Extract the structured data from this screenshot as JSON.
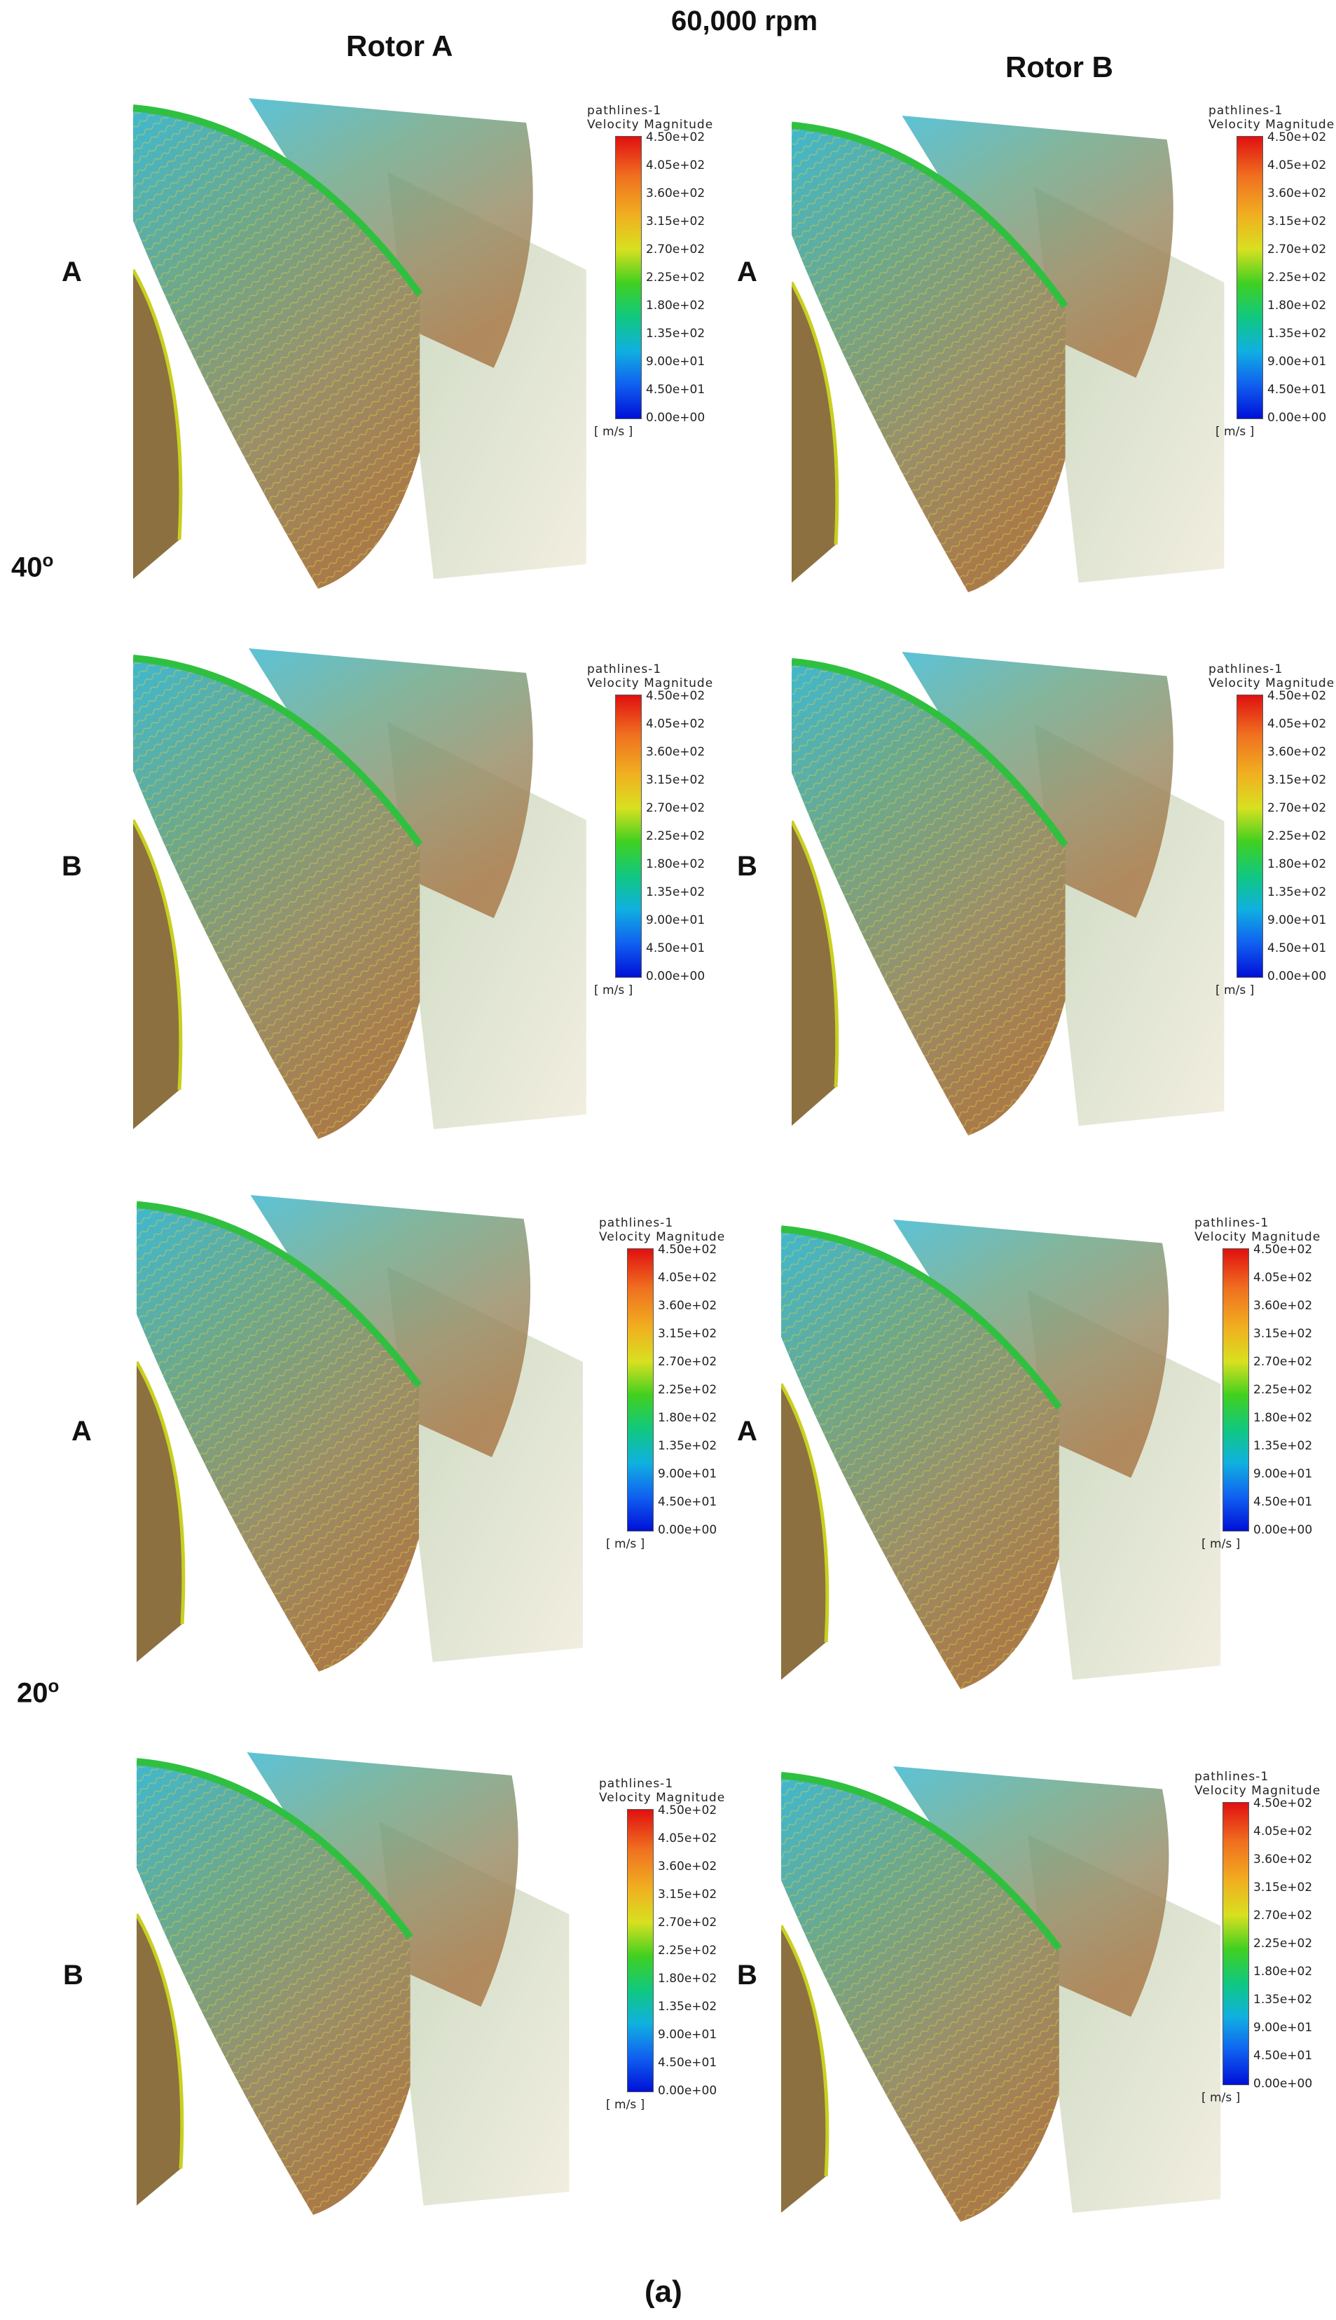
{
  "header": {
    "rpm": "60,000 rpm",
    "rotor_a": "Rotor A",
    "rotor_b": "Rotor B"
  },
  "angles": {
    "a40": "40",
    "a20": "20",
    "deg": "o"
  },
  "rows": {
    "r1": "A",
    "r2": "B",
    "r3": "A",
    "r4": "B"
  },
  "legend": {
    "line1": "pathlines-1",
    "line2": "Velocity Magnitude",
    "ticks": [
      "4.50e+02",
      "4.05e+02",
      "3.60e+02",
      "3.15e+02",
      "2.70e+02",
      "2.25e+02",
      "1.80e+02",
      "1.35e+02",
      "9.00e+01",
      "4.50e+01",
      "0.00e+00"
    ],
    "unit": "[ m/s ]"
  },
  "caption": "(a)"
}
